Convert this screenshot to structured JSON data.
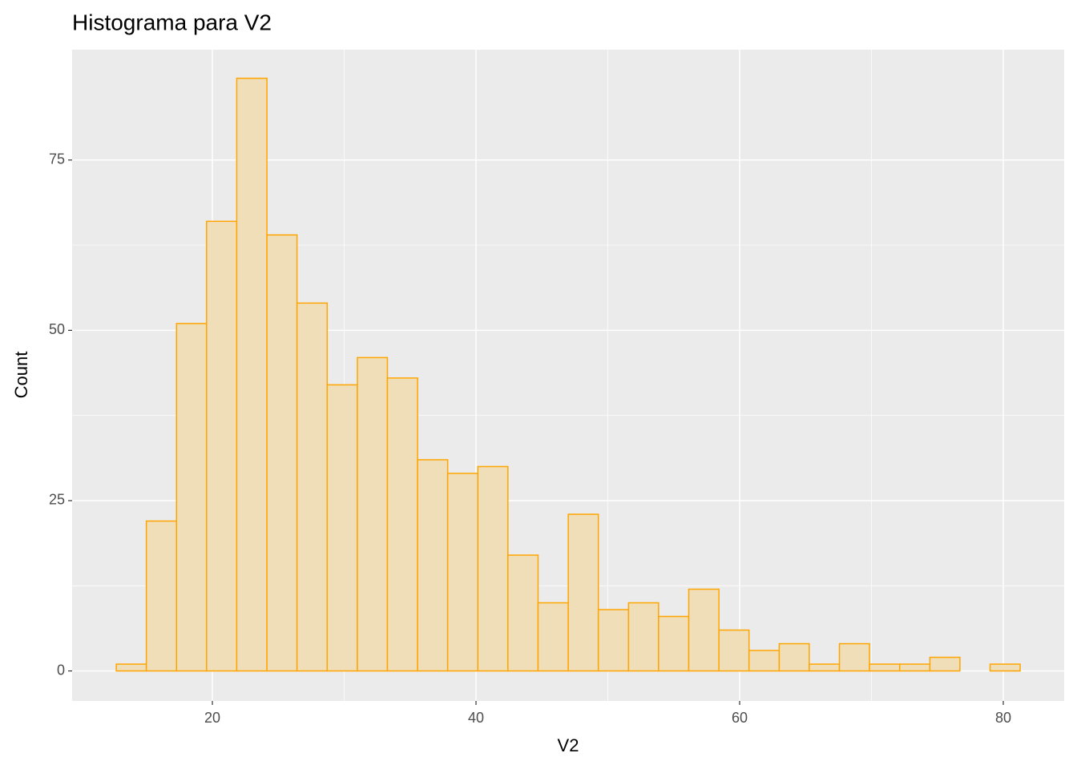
{
  "chart_data": {
    "type": "histogram",
    "title": "Histograma para V2",
    "x_label": "V2",
    "y_label": "Count",
    "bins": [
      12.71,
      14.99,
      17.28,
      19.56,
      21.85,
      24.14,
      26.42,
      28.71,
      31.0,
      33.28,
      35.57,
      37.85,
      40.14,
      42.42,
      44.71,
      47.0,
      49.28,
      51.57,
      53.85,
      56.14,
      58.43,
      60.71,
      63.0,
      65.28,
      67.57,
      69.85,
      72.14,
      74.43,
      76.71,
      79.0,
      81.28
    ],
    "values": [
      1,
      22,
      51,
      66,
      87,
      64,
      54,
      42,
      46,
      43,
      31,
      29,
      30,
      17,
      10,
      23,
      9,
      10,
      8,
      12,
      6,
      3,
      4,
      1,
      4,
      1,
      1,
      2,
      0,
      1
    ],
    "color": "#f0deb9",
    "edge_color": "#ffa500",
    "xlim": [
      9.36,
      84.62
    ],
    "xticks": [
      20,
      40,
      60,
      80
    ],
    "ylim": [
      -4.4,
      91.2
    ],
    "yticks": [
      0,
      25,
      50,
      75
    ],
    "grid": true
  }
}
